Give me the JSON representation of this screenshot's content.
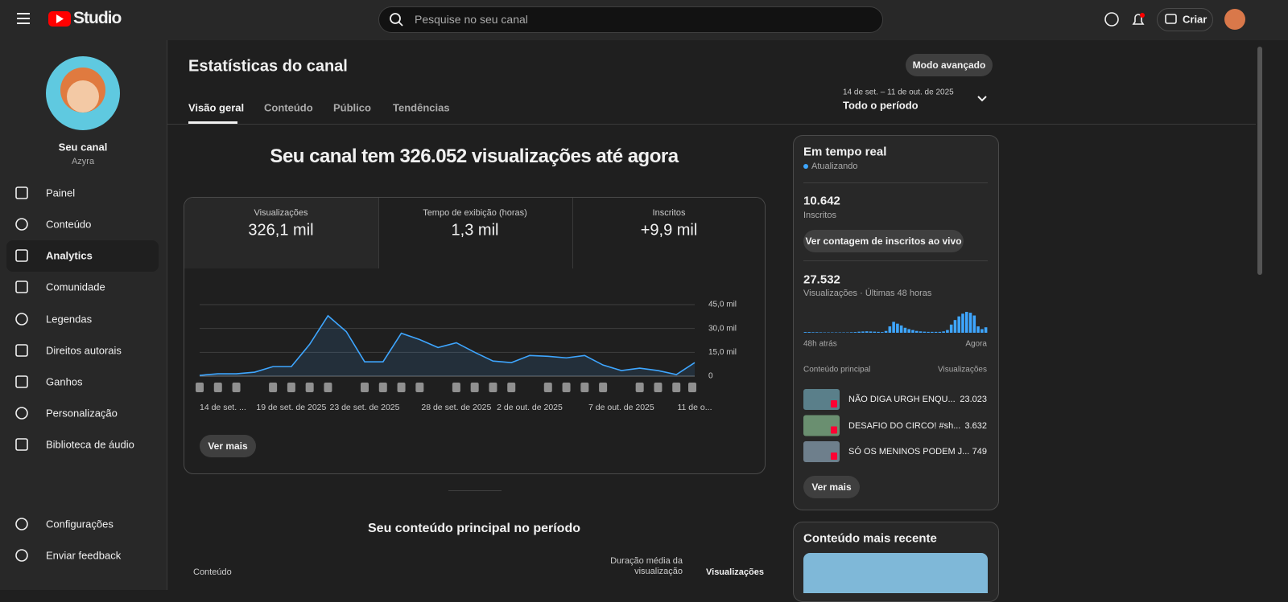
{
  "header": {
    "logo": "Studio",
    "search_placeholder": "Pesquise no seu canal",
    "create": "Criar"
  },
  "sidebar": {
    "channel_title": "Seu canal",
    "channel_name": "Azyra",
    "nav": [
      "Painel",
      "Conteúdo",
      "Analytics",
      "Comunidade",
      "Legendas",
      "Direitos autorais",
      "Ganhos",
      "Personalização",
      "Biblioteca de áudio"
    ],
    "bottom": [
      "Configurações",
      "Enviar feedback"
    ]
  },
  "main": {
    "title": "Estatísticas do canal",
    "advanced": "Modo avançado",
    "tabs": [
      "Visão geral",
      "Conteúdo",
      "Público",
      "Tendências"
    ],
    "date_range": "14 de set. – 11 de out. de 2025",
    "period": "Todo o período",
    "headline": "Seu canal tem 326.052 visualizações até agora",
    "metrics": [
      {
        "label": "Visualizações",
        "value": "326,1 mil"
      },
      {
        "label": "Tempo de exibição (horas)",
        "value": "1,3 mil"
      },
      {
        "label": "Inscritos",
        "value": "+9,9 mil"
      }
    ],
    "see_more": "Ver mais",
    "top_content": {
      "title": "Seu conteúdo principal no período",
      "columns": [
        "Conteúdo",
        "Duração média da visualização",
        "Visualizações"
      ]
    }
  },
  "realtime": {
    "title": "Em tempo real",
    "status": "Atualizando",
    "subscribers": "10.642",
    "subscribers_label": "Inscritos",
    "live_button": "Ver contagem de inscritos ao vivo",
    "views": "27.532",
    "views_label": "Visualizações · Últimas 48 horas",
    "start_label": "48h atrás",
    "end_label": "Agora",
    "list_header": "Conteúdo principal",
    "list_header_value": "Visualizações",
    "items": [
      {
        "title": "NÃO DIGA URGH ENQU...",
        "views": "23.023"
      },
      {
        "title": "DESAFIO DO CIRCO! #sh...",
        "views": "3.632"
      },
      {
        "title": "SÓ OS MENINOS PODEM J...",
        "views": "749"
      }
    ],
    "see_more": "Ver mais"
  },
  "recent": {
    "title": "Conteúdo mais recente"
  },
  "chart_data": [
    {
      "type": "line",
      "color": "#3ea6ff",
      "categories": [
        "14 de set. ...",
        null,
        null,
        null,
        null,
        "19 de set. de 2025",
        null,
        null,
        null,
        "23 de set. de 2025",
        null,
        null,
        null,
        null,
        "28 de set. de 2025",
        null,
        null,
        null,
        "2 de out. de 2025",
        null,
        null,
        null,
        null,
        "7 de out. de 2025",
        null,
        null,
        null,
        "11 de o..."
      ],
      "values": [
        500,
        1500,
        1500,
        2500,
        6000,
        6000,
        20000,
        38000,
        28000,
        9000,
        9000,
        27000,
        23000,
        18000,
        21000,
        15000,
        9500,
        8500,
        13000,
        12500,
        11500,
        13000,
        7000,
        3500,
        5000,
        3500,
        1000,
        8500
      ],
      "ylim": [
        0,
        45000
      ],
      "yticks": [
        0,
        {
          "value": 15000,
          "label": "15,0 mil"
        },
        {
          "value": 30000,
          "label": "30,0 mil"
        },
        {
          "value": 45000,
          "label": "45,0 mil"
        }
      ],
      "grid": true
    },
    {
      "type": "bar",
      "color": "#3ea6ff",
      "values": [
        80,
        80,
        60,
        60,
        50,
        40,
        40,
        40,
        40,
        40,
        40,
        40,
        60,
        80,
        120,
        140,
        160,
        140,
        120,
        100,
        80,
        200,
        700,
        1200,
        1000,
        800,
        550,
        400,
        300,
        200,
        150,
        120,
        100,
        100,
        100,
        100,
        150,
        300,
        900,
        1400,
        1800,
        2100,
        2300,
        2200,
        1900,
        700,
        400,
        600
      ]
    }
  ]
}
